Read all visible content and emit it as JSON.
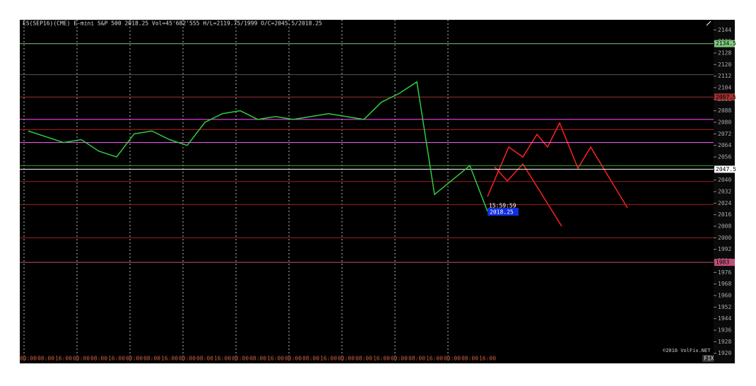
{
  "chart_data": {
    "type": "line",
    "title": "ES(SEP16)(CME) E-mini S&P 500 2018.25 Vol=45'682'555 H/L=2119.75/1999 O/C=2045.5/2018.25",
    "categories": [
      "00:00",
      "08:00",
      "16:00",
      "00:00",
      "08:00",
      "16:00",
      "00:00",
      "08:00",
      "16:00",
      "00:00",
      "08:00",
      "16:00",
      "00:00",
      "08:00",
      "16:00",
      "00:00",
      "08:00",
      "16:00",
      "00:00",
      "08:00",
      "16:00",
      "00:00",
      "08:00",
      "16:00",
      "00:00",
      "08:00",
      "16:00"
    ],
    "series": [
      {
        "name": "ES(SEP16)",
        "color": "#2ecc40",
        "values": [
          2074,
          2070,
          2066,
          2068,
          2060,
          2056,
          2072,
          2074,
          2068,
          2064,
          2080,
          2086,
          2088,
          2082,
          2084,
          2082,
          2084,
          2086,
          2084,
          2082,
          2094,
          2100,
          2108,
          2030,
          2040,
          2050,
          2018.25
        ]
      }
    ],
    "last_time": "15:59:59",
    "ylim": [
      1914,
      2151
    ],
    "yticks": [
      2144,
      2136,
      2128,
      2120,
      2112,
      2104,
      2096,
      2088,
      2080,
      2072,
      2064,
      2056,
      2048,
      2040,
      2032,
      2024,
      2016,
      2008,
      2000,
      1992,
      1984,
      1976,
      1968,
      1960,
      1952,
      1944,
      1936,
      1928,
      1920
    ],
    "levels": [
      {
        "value": {
          "value": 2134.5,
          "label": "2134.5"
        },
        "color": "#7fc97f"
      },
      {
        "value": 2113,
        "color": "#555555"
      },
      {
        "value": {
          "value": 2097.5,
          "label": "2097.5"
        },
        "color": "#a03030"
      },
      {
        "value": 2082,
        "color": "#ff55ff"
      },
      {
        "value": 2075,
        "color": "#c02020"
      },
      {
        "value": 2066,
        "color": "#ff66ff"
      },
      {
        "value": {
          "value": 2047.5,
          "label": "2047.5"
        },
        "color": "#ffffff"
      },
      {
        "value": 2050,
        "color": "#3aa03a"
      },
      {
        "value": 2039,
        "color": "#a02020"
      },
      {
        "value": 2023,
        "color": "#a02020"
      },
      {
        "value": 2000,
        "color": "#a02020"
      },
      {
        "value": {
          "value": 1983,
          "label": "1983"
        },
        "color": "#c0507a"
      }
    ],
    "copyright": "©2016 VolFix.NET",
    "button": "FIX"
  }
}
